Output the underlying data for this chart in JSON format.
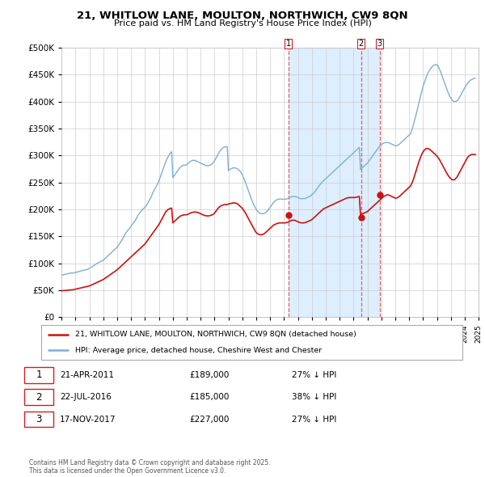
{
  "title1": "21, WHITLOW LANE, MOULTON, NORTHWICH, CW9 8QN",
  "title2": "Price paid vs. HM Land Registry's House Price Index (HPI)",
  "ytick_values": [
    0,
    50000,
    100000,
    150000,
    200000,
    250000,
    300000,
    350000,
    400000,
    450000,
    500000
  ],
  "hpi_color": "#7bafd4",
  "price_color": "#cc1111",
  "dashed_line_color": "#e06060",
  "shade_color": "#ddeeff",
  "legend_label_red": "21, WHITLOW LANE, MOULTON, NORTHWICH, CW9 8QN (detached house)",
  "legend_label_blue": "HPI: Average price, detached house, Cheshire West and Chester",
  "transactions": [
    {
      "num": 1,
      "date": "21-APR-2011",
      "date_val": 2011.3,
      "price": 189000,
      "label": "27% ↓ HPI"
    },
    {
      "num": 2,
      "date": "22-JUL-2016",
      "date_val": 2016.55,
      "price": 185000,
      "label": "38% ↓ HPI"
    },
    {
      "num": 3,
      "date": "17-NOV-2017",
      "date_val": 2017.88,
      "price": 227000,
      "label": "27% ↓ HPI"
    }
  ],
  "footer": "Contains HM Land Registry data © Crown copyright and database right 2025.\nThis data is licensed under the Open Government Licence v3.0.",
  "hpi_data_x": [
    1995.0,
    1995.083,
    1995.167,
    1995.25,
    1995.333,
    1995.417,
    1995.5,
    1995.583,
    1995.667,
    1995.75,
    1995.833,
    1995.917,
    1996.0,
    1996.083,
    1996.167,
    1996.25,
    1996.333,
    1996.417,
    1996.5,
    1996.583,
    1996.667,
    1996.75,
    1996.833,
    1996.917,
    1997.0,
    1997.083,
    1997.167,
    1997.25,
    1997.333,
    1997.417,
    1997.5,
    1997.583,
    1997.667,
    1997.75,
    1997.833,
    1997.917,
    1998.0,
    1998.083,
    1998.167,
    1998.25,
    1998.333,
    1998.417,
    1998.5,
    1998.583,
    1998.667,
    1998.75,
    1998.833,
    1998.917,
    1999.0,
    1999.083,
    1999.167,
    1999.25,
    1999.333,
    1999.417,
    1999.5,
    1999.583,
    1999.667,
    1999.75,
    1999.833,
    1999.917,
    2000.0,
    2000.083,
    2000.167,
    2000.25,
    2000.333,
    2000.417,
    2000.5,
    2000.583,
    2000.667,
    2000.75,
    2000.833,
    2000.917,
    2001.0,
    2001.083,
    2001.167,
    2001.25,
    2001.333,
    2001.417,
    2001.5,
    2001.583,
    2001.667,
    2001.75,
    2001.833,
    2001.917,
    2002.0,
    2002.083,
    2002.167,
    2002.25,
    2002.333,
    2002.417,
    2002.5,
    2002.583,
    2002.667,
    2002.75,
    2002.833,
    2002.917,
    2003.0,
    2003.083,
    2003.167,
    2003.25,
    2003.333,
    2003.417,
    2003.5,
    2003.583,
    2003.667,
    2003.75,
    2003.833,
    2003.917,
    2004.0,
    2004.083,
    2004.167,
    2004.25,
    2004.333,
    2004.417,
    2004.5,
    2004.583,
    2004.667,
    2004.75,
    2004.833,
    2004.917,
    2005.0,
    2005.083,
    2005.167,
    2005.25,
    2005.333,
    2005.417,
    2005.5,
    2005.583,
    2005.667,
    2005.75,
    2005.833,
    2005.917,
    2006.0,
    2006.083,
    2006.167,
    2006.25,
    2006.333,
    2006.417,
    2006.5,
    2006.583,
    2006.667,
    2006.75,
    2006.833,
    2006.917,
    2007.0,
    2007.083,
    2007.167,
    2007.25,
    2007.333,
    2007.417,
    2007.5,
    2007.583,
    2007.667,
    2007.75,
    2007.833,
    2007.917,
    2008.0,
    2008.083,
    2008.167,
    2008.25,
    2008.333,
    2008.417,
    2008.5,
    2008.583,
    2008.667,
    2008.75,
    2008.833,
    2008.917,
    2009.0,
    2009.083,
    2009.167,
    2009.25,
    2009.333,
    2009.417,
    2009.5,
    2009.583,
    2009.667,
    2009.75,
    2009.833,
    2009.917,
    2010.0,
    2010.083,
    2010.167,
    2010.25,
    2010.333,
    2010.417,
    2010.5,
    2010.583,
    2010.667,
    2010.75,
    2010.833,
    2010.917,
    2011.0,
    2011.083,
    2011.167,
    2011.25,
    2011.333,
    2011.417,
    2011.5,
    2011.583,
    2011.667,
    2011.75,
    2011.833,
    2011.917,
    2012.0,
    2012.083,
    2012.167,
    2012.25,
    2012.333,
    2012.417,
    2012.5,
    2012.583,
    2012.667,
    2012.75,
    2012.833,
    2012.917,
    2013.0,
    2013.083,
    2013.167,
    2013.25,
    2013.333,
    2013.417,
    2013.5,
    2013.583,
    2013.667,
    2013.75,
    2013.833,
    2013.917,
    2014.0,
    2014.083,
    2014.167,
    2014.25,
    2014.333,
    2014.417,
    2014.5,
    2014.583,
    2014.667,
    2014.75,
    2014.833,
    2014.917,
    2015.0,
    2015.083,
    2015.167,
    2015.25,
    2015.333,
    2015.417,
    2015.5,
    2015.583,
    2015.667,
    2015.75,
    2015.833,
    2015.917,
    2016.0,
    2016.083,
    2016.167,
    2016.25,
    2016.333,
    2016.417,
    2016.5,
    2016.583,
    2016.667,
    2016.75,
    2016.833,
    2016.917,
    2017.0,
    2017.083,
    2017.167,
    2017.25,
    2017.333,
    2017.417,
    2017.5,
    2017.583,
    2017.667,
    2017.75,
    2017.833,
    2017.917,
    2018.0,
    2018.083,
    2018.167,
    2018.25,
    2018.333,
    2018.417,
    2018.5,
    2018.583,
    2018.667,
    2018.75,
    2018.833,
    2018.917,
    2019.0,
    2019.083,
    2019.167,
    2019.25,
    2019.333,
    2019.417,
    2019.5,
    2019.583,
    2019.667,
    2019.75,
    2019.833,
    2019.917,
    2020.0,
    2020.083,
    2020.167,
    2020.25,
    2020.333,
    2020.417,
    2020.5,
    2020.583,
    2020.667,
    2020.75,
    2020.833,
    2020.917,
    2021.0,
    2021.083,
    2021.167,
    2021.25,
    2021.333,
    2021.417,
    2021.5,
    2021.583,
    2021.667,
    2021.75,
    2021.833,
    2021.917,
    2022.0,
    2022.083,
    2022.167,
    2022.25,
    2022.333,
    2022.417,
    2022.5,
    2022.583,
    2022.667,
    2022.75,
    2022.833,
    2022.917,
    2023.0,
    2023.083,
    2023.167,
    2023.25,
    2023.333,
    2023.417,
    2023.5,
    2023.583,
    2023.667,
    2023.75,
    2023.833,
    2023.917,
    2024.0,
    2024.083,
    2024.167,
    2024.25,
    2024.333,
    2024.417,
    2024.5,
    2024.583,
    2024.667,
    2024.75
  ],
  "hpi_data_y": [
    78000,
    78500,
    79000,
    79500,
    80000,
    80500,
    81000,
    81500,
    82000,
    82000,
    82000,
    82500,
    83000,
    83500,
    84000,
    85000,
    85500,
    86000,
    86500,
    87000,
    87500,
    88000,
    88500,
    89500,
    91000,
    92000,
    93000,
    94500,
    96000,
    97500,
    99000,
    100500,
    101500,
    102500,
    103500,
    104500,
    106000,
    108000,
    110000,
    112000,
    114000,
    116000,
    118000,
    120000,
    122000,
    124000,
    126000,
    128000,
    130000,
    133000,
    136000,
    140000,
    143000,
    147000,
    151000,
    155000,
    158000,
    161000,
    163000,
    166000,
    169000,
    172000,
    175000,
    178000,
    181000,
    185000,
    189000,
    192000,
    195000,
    198000,
    200000,
    202000,
    204000,
    207000,
    210000,
    214000,
    218000,
    222000,
    227000,
    232000,
    236000,
    240000,
    244000,
    248000,
    253000,
    259000,
    265000,
    271000,
    277000,
    283000,
    289000,
    294000,
    298000,
    302000,
    305000,
    307000,
    259000,
    262000,
    265000,
    268000,
    271000,
    274000,
    277000,
    279000,
    281000,
    282000,
    282000,
    282000,
    283000,
    285000,
    287000,
    289000,
    290000,
    291000,
    291000,
    291000,
    290000,
    289000,
    288000,
    287000,
    286000,
    285000,
    284000,
    283000,
    282000,
    281000,
    281000,
    281000,
    282000,
    283000,
    285000,
    287000,
    290000,
    294000,
    298000,
    302000,
    306000,
    309000,
    312000,
    314000,
    315000,
    316000,
    316000,
    316000,
    272000,
    274000,
    275000,
    276000,
    277000,
    277000,
    277000,
    276000,
    275000,
    273000,
    271000,
    268000,
    264000,
    259000,
    254000,
    248000,
    242000,
    236000,
    230000,
    224000,
    218000,
    213000,
    208000,
    204000,
    200000,
    197000,
    195000,
    193000,
    192000,
    192000,
    192000,
    193000,
    194000,
    196000,
    198000,
    201000,
    204000,
    207000,
    210000,
    213000,
    215000,
    217000,
    218000,
    219000,
    219000,
    219000,
    219000,
    219000,
    219000,
    219000,
    219000,
    220000,
    221000,
    222000,
    223000,
    224000,
    224000,
    224000,
    224000,
    223000,
    222000,
    221000,
    220000,
    220000,
    220000,
    220000,
    220000,
    221000,
    222000,
    223000,
    224000,
    225000,
    227000,
    229000,
    231000,
    234000,
    237000,
    240000,
    243000,
    246000,
    248000,
    251000,
    253000,
    255000,
    257000,
    259000,
    261000,
    263000,
    265000,
    267000,
    269000,
    271000,
    273000,
    275000,
    277000,
    279000,
    281000,
    283000,
    285000,
    287000,
    289000,
    291000,
    293000,
    295000,
    297000,
    299000,
    301000,
    303000,
    305000,
    307000,
    309000,
    311000,
    313000,
    315000,
    274000,
    276000,
    278000,
    280000,
    282000,
    284000,
    286000,
    289000,
    292000,
    295000,
    298000,
    301000,
    304000,
    307000,
    310000,
    313000,
    316000,
    318000,
    320000,
    322000,
    323000,
    324000,
    324000,
    324000,
    324000,
    323000,
    322000,
    321000,
    320000,
    319000,
    318000,
    318000,
    319000,
    320000,
    322000,
    324000,
    326000,
    328000,
    330000,
    332000,
    334000,
    336000,
    338000,
    340000,
    345000,
    352000,
    360000,
    368000,
    376000,
    385000,
    394000,
    403000,
    412000,
    420000,
    428000,
    435000,
    441000,
    447000,
    452000,
    456000,
    460000,
    463000,
    465000,
    467000,
    468000,
    469000,
    468000,
    465000,
    461000,
    456000,
    450000,
    444000,
    438000,
    432000,
    426000,
    420000,
    415000,
    410000,
    406000,
    403000,
    401000,
    400000,
    400000,
    401000,
    403000,
    406000,
    410000,
    414000,
    418000,
    422000,
    426000,
    430000,
    433000,
    436000,
    438000,
    440000,
    441000,
    442000,
    443000,
    444000
  ],
  "price_data_x": [
    1995.0,
    1995.083,
    1995.167,
    1995.25,
    1995.333,
    1995.417,
    1995.5,
    1995.583,
    1995.667,
    1995.75,
    1995.833,
    1995.917,
    1996.0,
    1996.083,
    1996.167,
    1996.25,
    1996.333,
    1996.417,
    1996.5,
    1996.583,
    1996.667,
    1996.75,
    1996.833,
    1996.917,
    1997.0,
    1997.083,
    1997.167,
    1997.25,
    1997.333,
    1997.417,
    1997.5,
    1997.583,
    1997.667,
    1997.75,
    1997.833,
    1997.917,
    1998.0,
    1998.083,
    1998.167,
    1998.25,
    1998.333,
    1998.417,
    1998.5,
    1998.583,
    1998.667,
    1998.75,
    1998.833,
    1998.917,
    1999.0,
    1999.083,
    1999.167,
    1999.25,
    1999.333,
    1999.417,
    1999.5,
    1999.583,
    1999.667,
    1999.75,
    1999.833,
    1999.917,
    2000.0,
    2000.083,
    2000.167,
    2000.25,
    2000.333,
    2000.417,
    2000.5,
    2000.583,
    2000.667,
    2000.75,
    2000.833,
    2000.917,
    2001.0,
    2001.083,
    2001.167,
    2001.25,
    2001.333,
    2001.417,
    2001.5,
    2001.583,
    2001.667,
    2001.75,
    2001.833,
    2001.917,
    2002.0,
    2002.083,
    2002.167,
    2002.25,
    2002.333,
    2002.417,
    2002.5,
    2002.583,
    2002.667,
    2002.75,
    2002.833,
    2002.917,
    2003.0,
    2003.083,
    2003.167,
    2003.25,
    2003.333,
    2003.417,
    2003.5,
    2003.583,
    2003.667,
    2003.75,
    2003.833,
    2003.917,
    2004.0,
    2004.083,
    2004.167,
    2004.25,
    2004.333,
    2004.417,
    2004.5,
    2004.583,
    2004.667,
    2004.75,
    2004.833,
    2004.917,
    2005.0,
    2005.083,
    2005.167,
    2005.25,
    2005.333,
    2005.417,
    2005.5,
    2005.583,
    2005.667,
    2005.75,
    2005.833,
    2005.917,
    2006.0,
    2006.083,
    2006.167,
    2006.25,
    2006.333,
    2006.417,
    2006.5,
    2006.583,
    2006.667,
    2006.75,
    2006.833,
    2006.917,
    2007.0,
    2007.083,
    2007.167,
    2007.25,
    2007.333,
    2007.417,
    2007.5,
    2007.583,
    2007.667,
    2007.75,
    2007.833,
    2007.917,
    2008.0,
    2008.083,
    2008.167,
    2008.25,
    2008.333,
    2008.417,
    2008.5,
    2008.583,
    2008.667,
    2008.75,
    2008.833,
    2008.917,
    2009.0,
    2009.083,
    2009.167,
    2009.25,
    2009.333,
    2009.417,
    2009.5,
    2009.583,
    2009.667,
    2009.75,
    2009.833,
    2009.917,
    2010.0,
    2010.083,
    2010.167,
    2010.25,
    2010.333,
    2010.417,
    2010.5,
    2010.583,
    2010.667,
    2010.75,
    2010.833,
    2010.917,
    2011.0,
    2011.083,
    2011.167,
    2011.25,
    2011.333,
    2011.417,
    2011.5,
    2011.583,
    2011.667,
    2011.75,
    2011.833,
    2011.917,
    2012.0,
    2012.083,
    2012.167,
    2012.25,
    2012.333,
    2012.417,
    2012.5,
    2012.583,
    2012.667,
    2012.75,
    2012.833,
    2012.917,
    2013.0,
    2013.083,
    2013.167,
    2013.25,
    2013.333,
    2013.417,
    2013.5,
    2013.583,
    2013.667,
    2013.75,
    2013.833,
    2013.917,
    2014.0,
    2014.083,
    2014.167,
    2014.25,
    2014.333,
    2014.417,
    2014.5,
    2014.583,
    2014.667,
    2014.75,
    2014.833,
    2014.917,
    2015.0,
    2015.083,
    2015.167,
    2015.25,
    2015.333,
    2015.417,
    2015.5,
    2015.583,
    2015.667,
    2015.75,
    2015.833,
    2015.917,
    2016.0,
    2016.083,
    2016.167,
    2016.25,
    2016.333,
    2016.417,
    2016.5,
    2016.583,
    2016.667,
    2016.75,
    2016.833,
    2016.917,
    2017.0,
    2017.083,
    2017.167,
    2017.25,
    2017.333,
    2017.417,
    2017.5,
    2017.583,
    2017.667,
    2017.75,
    2017.833,
    2017.917,
    2018.0,
    2018.083,
    2018.167,
    2018.25,
    2018.333,
    2018.417,
    2018.5,
    2018.583,
    2018.667,
    2018.75,
    2018.833,
    2018.917,
    2019.0,
    2019.083,
    2019.167,
    2019.25,
    2019.333,
    2019.417,
    2019.5,
    2019.583,
    2019.667,
    2019.75,
    2019.833,
    2019.917,
    2020.0,
    2020.083,
    2020.167,
    2020.25,
    2020.333,
    2020.417,
    2020.5,
    2020.583,
    2020.667,
    2020.75,
    2020.833,
    2020.917,
    2021.0,
    2021.083,
    2021.167,
    2021.25,
    2021.333,
    2021.417,
    2021.5,
    2021.583,
    2021.667,
    2021.75,
    2021.833,
    2021.917,
    2022.0,
    2022.083,
    2022.167,
    2022.25,
    2022.333,
    2022.417,
    2022.5,
    2022.583,
    2022.667,
    2022.75,
    2022.833,
    2022.917,
    2023.0,
    2023.083,
    2023.167,
    2023.25,
    2023.333,
    2023.417,
    2023.5,
    2023.583,
    2023.667,
    2023.75,
    2023.833,
    2023.917,
    2024.0,
    2024.083,
    2024.167,
    2024.25,
    2024.333,
    2024.417,
    2024.5,
    2024.583,
    2024.667,
    2024.75
  ],
  "price_data_y": [
    49000,
    49200,
    49400,
    49600,
    49800,
    50000,
    50200,
    50400,
    50600,
    50800,
    51000,
    51500,
    52000,
    52500,
    53000,
    53500,
    54000,
    54500,
    55000,
    55500,
    56000,
    56500,
    57000,
    57500,
    58000,
    59000,
    60000,
    61000,
    62000,
    63000,
    64000,
    65000,
    66000,
    67000,
    68000,
    69000,
    70000,
    71500,
    73000,
    74500,
    76000,
    77500,
    79000,
    80500,
    82000,
    83500,
    85000,
    86500,
    88000,
    90000,
    92000,
    94000,
    96000,
    98000,
    100000,
    102000,
    104000,
    106000,
    108000,
    110000,
    112000,
    114000,
    116000,
    118000,
    120000,
    122000,
    124000,
    126000,
    128000,
    130000,
    132000,
    134000,
    136000,
    139000,
    142000,
    145000,
    148000,
    151000,
    154000,
    157000,
    160000,
    163000,
    166000,
    169000,
    172000,
    176000,
    180000,
    184000,
    188000,
    192000,
    196000,
    198000,
    200000,
    201000,
    202000,
    202500,
    175000,
    177000,
    179000,
    181000,
    183000,
    185000,
    187000,
    188000,
    189000,
    189500,
    190000,
    190000,
    190000,
    191000,
    192000,
    193000,
    194000,
    194500,
    195000,
    195000,
    195000,
    194500,
    194000,
    193000,
    192000,
    191000,
    190000,
    189000,
    188500,
    188000,
    188000,
    188000,
    188500,
    189000,
    190000,
    191000,
    193000,
    196000,
    199000,
    202000,
    204000,
    206000,
    207000,
    208000,
    208500,
    209000,
    209000,
    209000,
    210000,
    210500,
    211000,
    211500,
    212000,
    212000,
    212000,
    211000,
    210000,
    208000,
    206000,
    204000,
    202000,
    199000,
    196000,
    192000,
    188000,
    184000,
    180000,
    176000,
    172000,
    168000,
    164000,
    160000,
    157000,
    155000,
    154000,
    153000,
    153000,
    153000,
    154000,
    155000,
    157000,
    159000,
    161000,
    163000,
    165000,
    167000,
    169000,
    171000,
    172000,
    173000,
    174000,
    174500,
    175000,
    175000,
    175000,
    175000,
    175000,
    175000,
    175500,
    176000,
    177000,
    178000,
    179000,
    180000,
    180000,
    180000,
    179000,
    178000,
    177000,
    176000,
    175500,
    175000,
    175000,
    175000,
    175500,
    176000,
    177000,
    178000,
    179000,
    180000,
    181000,
    183000,
    185000,
    187000,
    189000,
    191000,
    193000,
    195000,
    197000,
    199000,
    201000,
    202000,
    203000,
    204000,
    205000,
    206000,
    207000,
    208000,
    209000,
    210000,
    211000,
    212000,
    213000,
    214000,
    215000,
    216000,
    217000,
    218000,
    219000,
    220000,
    221000,
    221500,
    222000,
    222000,
    222000,
    222000,
    222000,
    222000,
    222500,
    223000,
    223500,
    224000,
    190000,
    191000,
    192000,
    193000,
    194000,
    195000,
    196000,
    198000,
    200000,
    202000,
    204000,
    206000,
    208000,
    210000,
    212000,
    214000,
    216000,
    218000,
    220000,
    222000,
    224000,
    225000,
    226000,
    227000,
    227000,
    226000,
    225000,
    224000,
    223000,
    222000,
    221000,
    221000,
    222000,
    223000,
    225000,
    227000,
    229000,
    231000,
    233000,
    235000,
    237000,
    239000,
    241000,
    243000,
    247000,
    252000,
    258000,
    265000,
    272000,
    279000,
    286000,
    292000,
    298000,
    303000,
    307000,
    310000,
    312000,
    313000,
    313000,
    312000,
    311000,
    309000,
    307000,
    305000,
    303000,
    301000,
    299000,
    296000,
    293000,
    289000,
    285000,
    281000,
    277000,
    273000,
    269000,
    265000,
    262000,
    259000,
    257000,
    255000,
    255000,
    255000,
    257000,
    259000,
    263000,
    267000,
    271000,
    275000,
    279000,
    283000,
    287000,
    291000,
    295000,
    298000,
    300000,
    301000,
    302000,
    302000,
    302000,
    302000
  ]
}
